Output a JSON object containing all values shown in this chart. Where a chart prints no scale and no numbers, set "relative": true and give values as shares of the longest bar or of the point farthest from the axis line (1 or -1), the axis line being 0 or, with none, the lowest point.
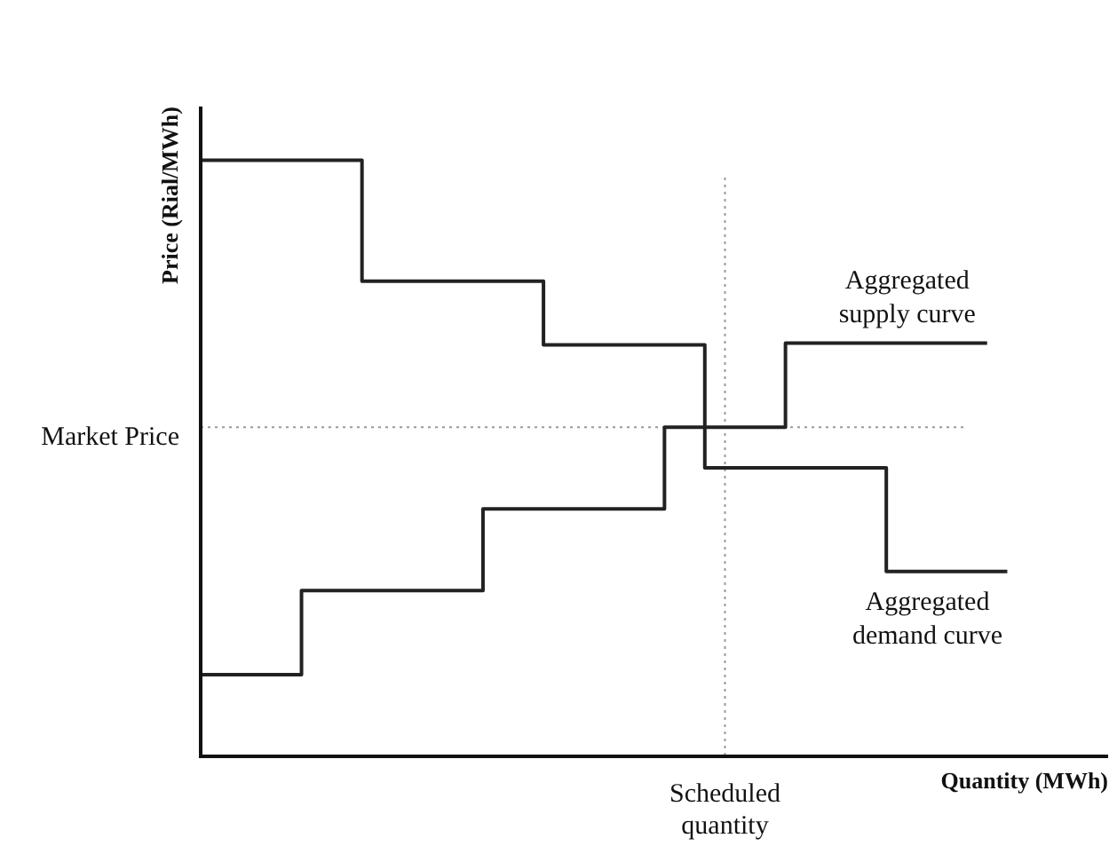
{
  "chart_data": {
    "type": "step",
    "relative": true,
    "xlabel": "Quantity (MWh)",
    "ylabel": "Price (Rial/MWh)",
    "tick_labels": false,
    "legend": false,
    "marker": "none",
    "line_style": "solid",
    "categories": [
      null,
      null,
      null,
      null,
      null,
      null,
      null,
      null,
      null,
      null,
      null,
      null,
      null,
      null,
      null,
      null,
      null,
      null,
      null,
      null,
      null,
      null,
      null,
      null,
      null,
      null,
      null,
      null,
      null,
      null,
      null,
      null,
      null,
      null,
      null,
      null,
      null,
      null,
      null,
      null,
      null,
      null,
      null,
      null,
      null,
      null
    ],
    "series": [
      {
        "name": "Aggregated supply curve",
        "color": "#222222",
        "values": [
          0.137,
          0.137,
          0.137,
          0.137,
          0.137,
          0.137,
          0.278,
          0.278,
          0.278,
          0.278,
          0.278,
          0.278,
          0.278,
          0.278,
          0.278,
          0.415,
          0.415,
          0.415,
          0.415,
          0.415,
          0.415,
          0.415,
          0.415,
          0.415,
          0.552,
          0.552,
          0.552,
          0.552,
          0.552,
          0.552,
          0.693,
          0.693,
          0.693,
          0.693,
          0.693,
          0.693,
          0.693,
          0.693,
          0.693,
          0.693,
          null,
          null,
          null,
          null,
          null,
          null
        ]
      },
      {
        "name": "Aggregated demand curve",
        "color": "#222222",
        "values": [
          1,
          1,
          1,
          1,
          1,
          1,
          1,
          1,
          1,
          0.797,
          0.797,
          0.797,
          0.797,
          0.797,
          0.797,
          0.797,
          0.797,
          0.797,
          0.69,
          0.69,
          0.69,
          0.69,
          0.69,
          0.69,
          0.69,
          0.69,
          0.484,
          0.484,
          0.484,
          0.484,
          0.484,
          0.484,
          0.484,
          0.484,
          0.484,
          0.31,
          0.31,
          0.31,
          0.31,
          0.31,
          0.31,
          null,
          null,
          null,
          null,
          null
        ]
      }
    ],
    "ref_lines": [
      {
        "axis": "y",
        "value": 0.552,
        "label": "Market Price",
        "color": "#999999",
        "line_style": "dotted"
      },
      {
        "axis": "x",
        "label": "Scheduled quantity",
        "color": "#999999",
        "line_style": "dotted"
      }
    ]
  }
}
